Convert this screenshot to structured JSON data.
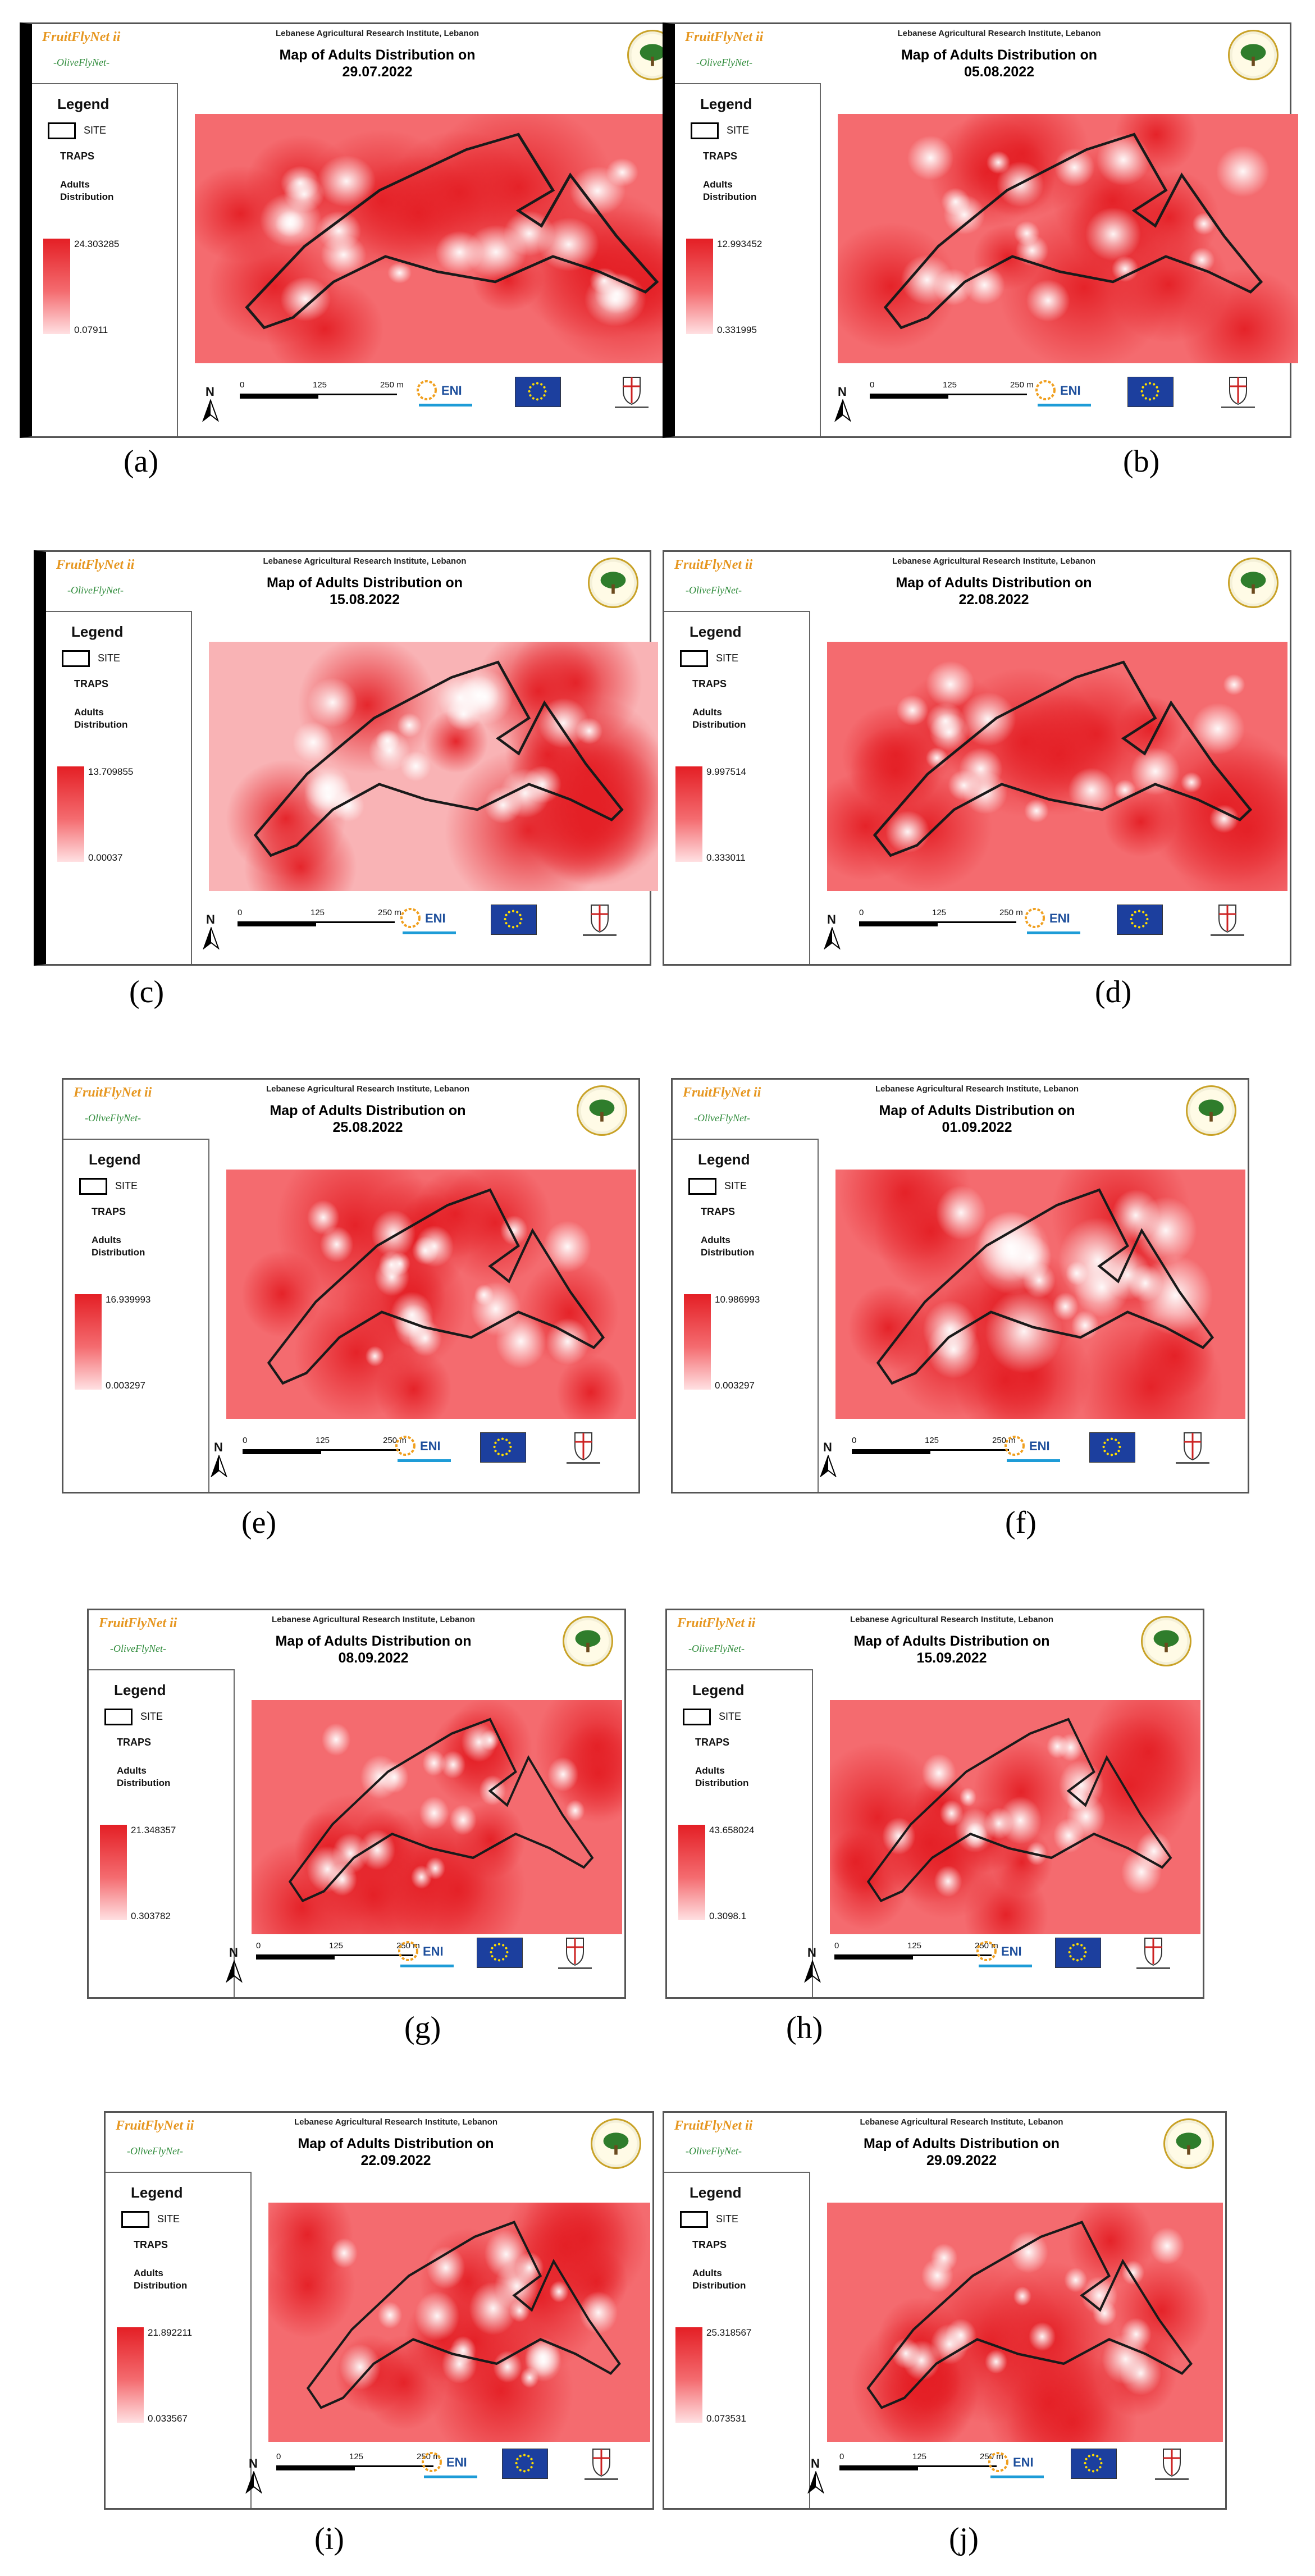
{
  "panels": [
    {
      "label": "(a)",
      "date": "29.07.2022",
      "max": "24.303285",
      "min": "0.07911"
    },
    {
      "label": "(b)",
      "date": "05.08.2022",
      "max": "12.993452",
      "min": "0.331995"
    },
    {
      "label": "(c)",
      "date": "15.08.2022",
      "max": "13.709855",
      "min": "0.00037"
    },
    {
      "label": "(d)",
      "date": "22.08.2022",
      "max": "9.997514",
      "min": "0.333011"
    },
    {
      "label": "(e)",
      "date": "25.08.2022",
      "max": "16.939993",
      "min": "0.003297"
    },
    {
      "label": "(f)",
      "date": "01.09.2022",
      "max": "10.986993",
      "min": "0.003297"
    },
    {
      "label": "(g)",
      "date": "08.09.2022",
      "max": "21.348357",
      "min": "0.303782"
    },
    {
      "label": "(h)",
      "date": "15.09.2022",
      "max": "43.658024",
      "min": "0.3098.1"
    },
    {
      "label": "(i)",
      "date": "22.09.2022",
      "max": "21.892211",
      "min": "0.033567"
    },
    {
      "label": "(j)",
      "date": "29.09.2022",
      "max": "25.318567",
      "min": "0.073531"
    }
  ],
  "common": {
    "project_name": "FruitFlyNet ii",
    "sub_project": "-OliveFlyNet-",
    "institute": "Lebanese Agricultural Research Institute, Lebanon",
    "title_prefix": "Map of Adults Distribution on",
    "legend_title": "Legend",
    "site_label": "SITE",
    "traps_label": "TRAPS",
    "adults_label_line1": "Adults",
    "adults_label_line2": "Distribution",
    "north_label": "N",
    "scale_ticks": [
      "0",
      "125",
      "250 m"
    ],
    "eni_text": "ENI",
    "colors": {
      "hot": "#e41f25",
      "mid": "#f46b6f",
      "cold": "#ffe0e2",
      "site_outline": "#1a1a1a"
    }
  }
}
